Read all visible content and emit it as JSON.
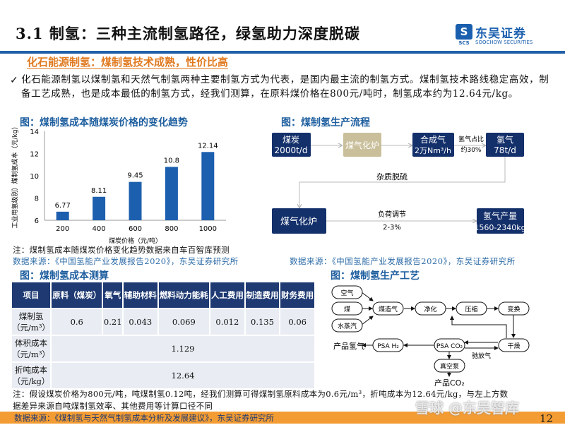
{
  "header": {
    "title": "3.1 制氢：三种主流制氢路径，绿氢助力深度脱碳",
    "logo_cn": "东吴证券",
    "logo_en": "SOOCHOW SECURITIES",
    "logo_abbr": "SCS"
  },
  "section": {
    "subheading": "化石能源制氢：煤制氢技术成熟，性价比高",
    "bullet": "化石能源制氢以煤制氢和天然气制氢两种主要制氢方式为代表，是国内最主流的制氢方式。煤制氢技术路线稳定高效，制备工艺成熟，也是成本最低的制氢方式，经我们测算，在原料煤价格在800元/吨时，制氢成本约为12.64元/kg。"
  },
  "chart_fig": {
    "title": "图：煤制氢成本随煤炭价格的变化趋势",
    "note": "注：煤制氢成本随煤炭价格变化趋势数据来自车百智库预测",
    "source": "数据来源：《中国氢能产业发展报告2020》，东吴证券研究所"
  },
  "chart_data": {
    "type": "bar",
    "categories": [
      "200",
      "400",
      "600",
      "800",
      "1000"
    ],
    "values": [
      6.77,
      8.11,
      9.45,
      10.8,
      12.14
    ],
    "value_labels": [
      "6.77",
      "8.11",
      "9.45",
      "10.8",
      "12.14"
    ],
    "xlabel": "煤炭价格（元/吨）",
    "ylabel": "工业用氢级别）煤制氢成本（元/kg）",
    "ylim": [
      6,
      14
    ],
    "yticks": [
      "6",
      "8",
      "10",
      "12",
      "14"
    ],
    "grid": false,
    "color": "#1c5fae"
  },
  "flow": {
    "title": "图：煤制氢生产流程",
    "coal": [
      "煤炭",
      "2000t/d"
    ],
    "gasifier": "煤气化炉",
    "syngas": [
      "合成气",
      "2万Nm³/h"
    ],
    "ratio": [
      "氢气占比",
      "约30%"
    ],
    "hydrogen": [
      "氢气",
      "78t/d"
    ],
    "desulfur": "杂质脱硫",
    "gasifier2": "煤气化炉",
    "load": [
      "负荷调节",
      "2-3%"
    ],
    "output": [
      "氢气产量",
      "1560-2340kg"
    ],
    "source": "数据来源：《中国氢能产业发展报告2020》，东吴证券研究所"
  },
  "cost_table": {
    "title": "图：煤制氢成本测算",
    "headers": [
      "项目",
      "原料（煤炭）",
      "氧气",
      "辅助材料",
      "燃料动力能耗",
      "人工费用",
      "制造费用",
      "财务费用"
    ],
    "row1": {
      "label": "煤制氢（元/m³）",
      "values": [
        "0.6",
        "0.21",
        "0.043",
        "0.069",
        "0.012",
        "0.135",
        "0.06"
      ]
    },
    "row2": {
      "label": "体积成本（元/m³）",
      "value": "1.129"
    },
    "row3": {
      "label": "折吨成本（元/kg）",
      "value": "12.64"
    },
    "note1": "注：假设煤炭价格为800元/吨，吨煤制氢0.12吨，经我们测算可得煤制氢原料成本为0.6元/m³，折吨成本为12.64元/kg，与左上方数",
    "note2": "据差异来源自吨煤制氢效率、其他费用等计算口径不同"
  },
  "process": {
    "title": "图：煤制氢生产工艺",
    "nodes": {
      "air": "空气",
      "coal": "煤",
      "steam": "水蒸汽",
      "gasmaking": "煤造气",
      "purify": "净化",
      "compress": "压缩",
      "shift": "变换",
      "dry": "干燥",
      "psaco2": "PSA CO₂",
      "psah2": "PSA H₂",
      "vacuum": "真空泵"
    },
    "product_h2": "产品氢气",
    "product_co2": "产品CO₂",
    "purge": "驰放气"
  },
  "footer": {
    "source": "数据来源：《煤制氢与天然气制氢成本分析及发展建议》，东吴证券研究所",
    "page": "12",
    "watermark": "雪球 @东吴智库"
  }
}
